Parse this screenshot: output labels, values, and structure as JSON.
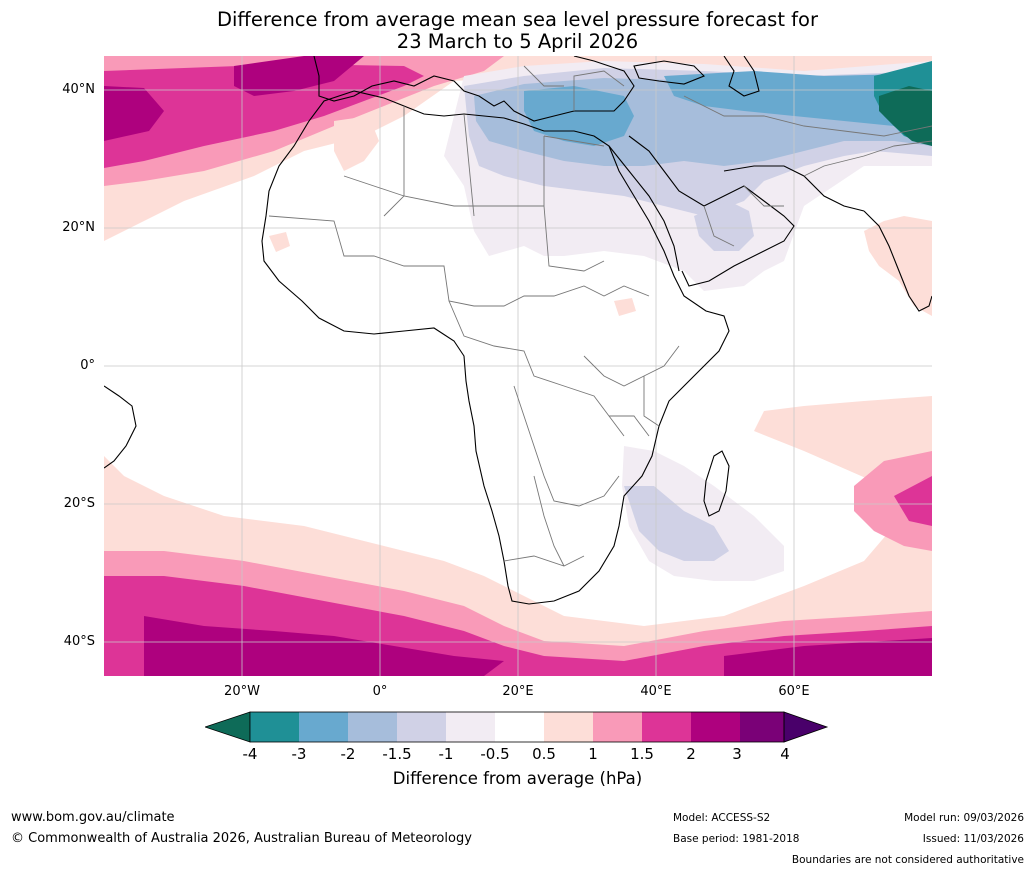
{
  "title": {
    "line1": "Difference from average mean sea level pressure forecast for",
    "line2": "23 March to 5 April 2026"
  },
  "axes": {
    "lat_labels": [
      "40°N",
      "20°N",
      "0°",
      "20°S",
      "40°S"
    ],
    "lon_labels": [
      "20°W",
      "0°",
      "20°E",
      "40°E",
      "60°E"
    ]
  },
  "colorbar": {
    "label": "Difference from average (hPa)",
    "ticks": [
      "-4",
      "-3",
      "-2",
      "-1.5",
      "-1",
      "-0.5",
      "0.5",
      "1",
      "1.5",
      "2",
      "3",
      "4"
    ],
    "colors": {
      "under": "#0e6b58",
      "lt_m3": "#1f9096",
      "m3_m2": "#68a9cf",
      "m2_m15": "#a6bddb",
      "m15_m1": "#d0d1e6",
      "m1_m05": "#f2ecf3",
      "m05_05": "#ffffff",
      "p05_1": "#fdded8",
      "p1_15": "#f99ab8",
      "p15_2": "#dd3497",
      "p2_3": "#ae017e",
      "p3_4": "#7a0177",
      "over": "#49006a"
    }
  },
  "footer": {
    "website": "www.bom.gov.au/climate",
    "copyright": "© Commonwealth of Australia 2026, Australian Bureau of Meteorology",
    "model": "Model: ACCESS-S2",
    "base_period": "Base period: 1981-2018",
    "model_run": "Model run: 09/03/2026",
    "issued": "Issued: 11/03/2026",
    "boundaries": "Boundaries are not considered authoritative"
  }
}
